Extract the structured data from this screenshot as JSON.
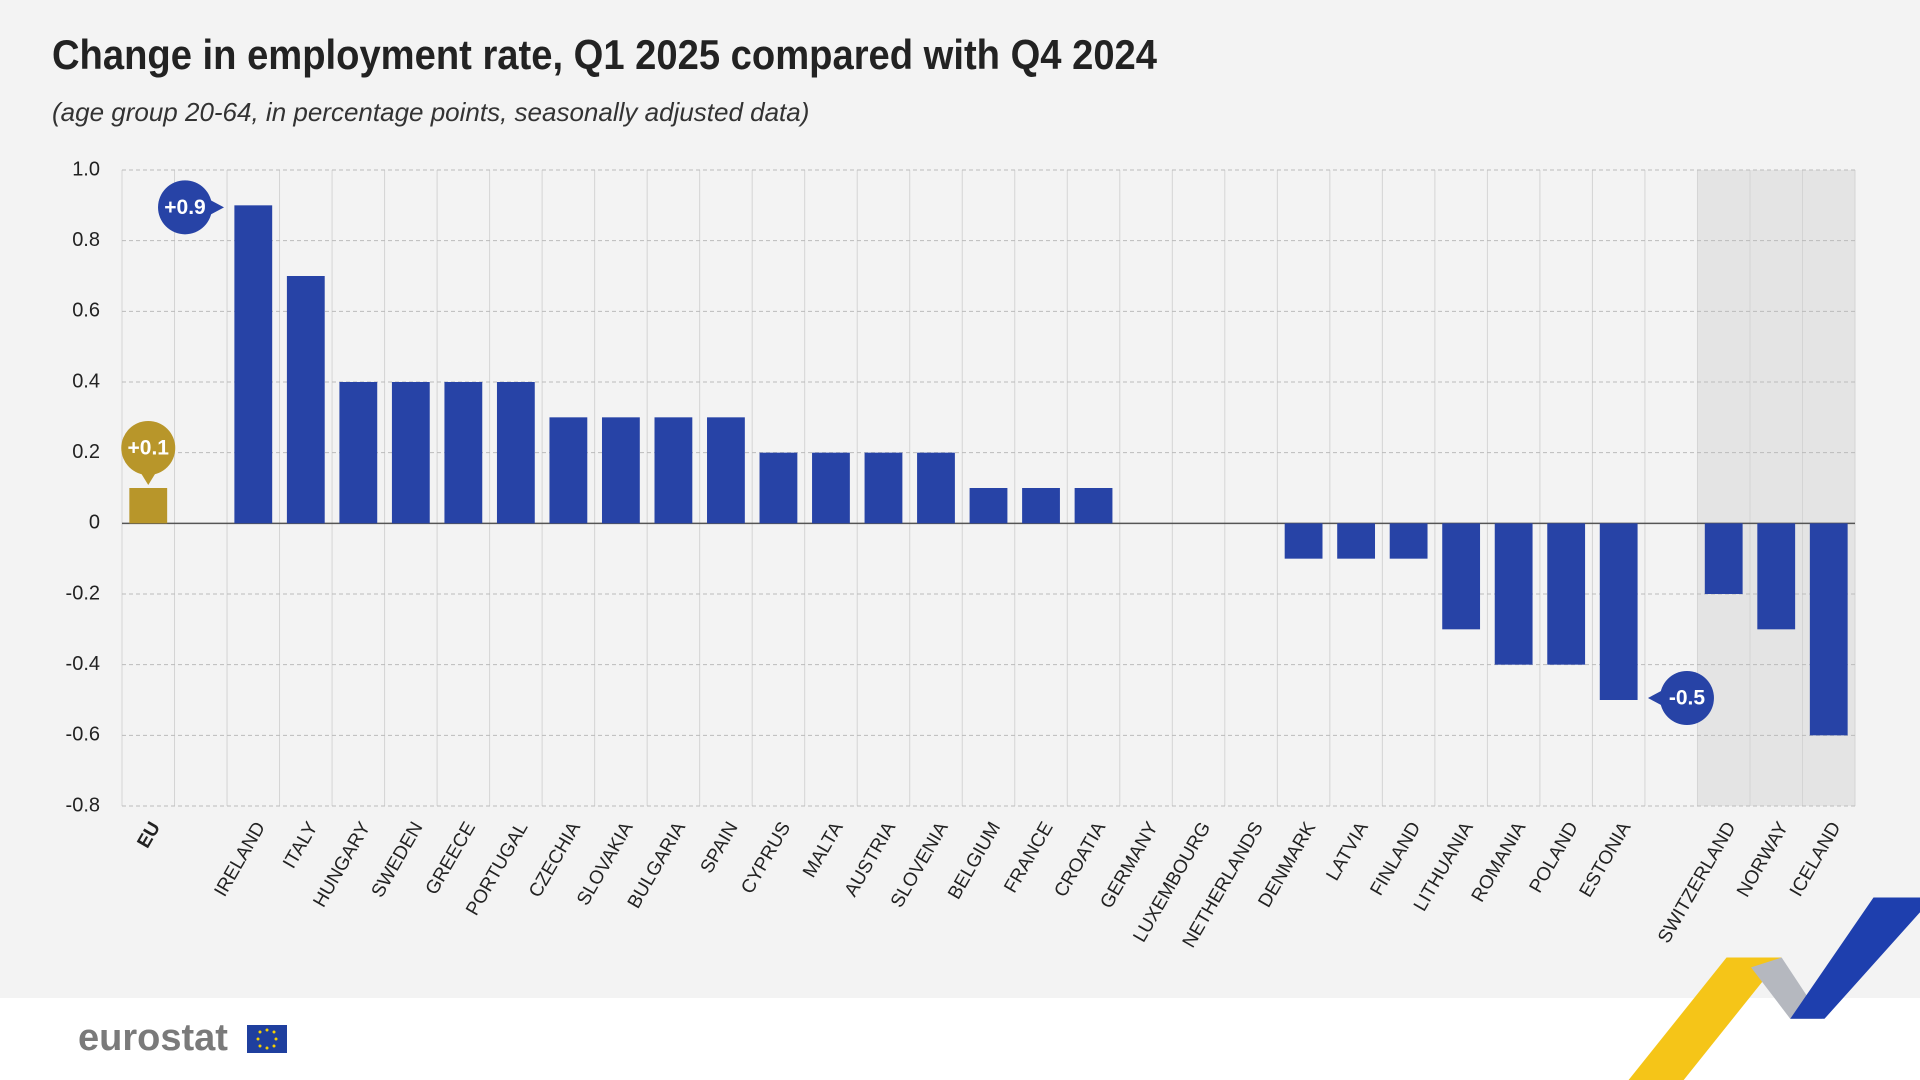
{
  "chart_data": {
    "type": "bar",
    "title": "Change in employment rate, Q1 2025 compared with Q4 2024",
    "subtitle": "(age group 20-64, in percentage points, seasonally adjusted data)",
    "categories": [
      "EU",
      null,
      "IRELAND",
      "ITALY",
      "HUNGARY",
      "SWEDEN",
      "GREECE",
      "PORTUGAL",
      "CZECHIA",
      "SLOVAKIA",
      "BULGARIA",
      "SPAIN",
      "CYPRUS",
      "MALTA",
      "AUSTRIA",
      "SLOVENIA",
      "BELGIUM",
      "FRANCE",
      "CROATIA",
      "GERMANY",
      "LUXEMBOURG",
      "NETHERLANDS",
      "DENMARK",
      "LATVIA",
      "FINLAND",
      "LITHUANIA",
      "ROMANIA",
      "POLAND",
      "ESTONIA",
      null,
      "SWITZERLAND",
      "NORWAY",
      "ICELAND"
    ],
    "values": [
      0.1,
      null,
      0.9,
      0.7,
      0.4,
      0.4,
      0.4,
      0.4,
      0.3,
      0.3,
      0.3,
      0.3,
      0.2,
      0.2,
      0.2,
      0.2,
      0.1,
      0.1,
      0.1,
      0,
      0,
      0,
      -0.1,
      -0.1,
      -0.1,
      -0.3,
      -0.4,
      -0.4,
      -0.5,
      null,
      -0.2,
      -0.3,
      -0.6
    ],
    "value_labels": [
      "+0.1",
      null,
      "+0.9",
      null,
      null,
      null,
      null,
      null,
      null,
      null,
      null,
      null,
      null,
      null,
      null,
      null,
      null,
      null,
      null,
      null,
      null,
      null,
      null,
      null,
      null,
      null,
      null,
      null,
      "-0.5",
      null,
      null,
      null,
      null
    ],
    "colors": [
      "#b8962a",
      null,
      "#2743a6",
      "#2743a6",
      "#2743a6",
      "#2743a6",
      "#2743a6",
      "#2743a6",
      "#2743a6",
      "#2743a6",
      "#2743a6",
      "#2743a6",
      "#2743a6",
      "#2743a6",
      "#2743a6",
      "#2743a6",
      "#2743a6",
      "#2743a6",
      "#2743a6",
      "#2743a6",
      "#2743a6",
      "#2743a6",
      "#2743a6",
      "#2743a6",
      "#2743a6",
      "#2743a6",
      "#2743a6",
      "#2743a6",
      "#2743a6",
      null,
      "#2743a6",
      "#2743a6",
      "#2743a6"
    ],
    "ylim": [
      -0.8,
      1
    ],
    "yticks": [
      {
        "value": 1,
        "label": "1.0"
      },
      0.8,
      0.6,
      0.4,
      0.2,
      0,
      -0.2,
      -0.4,
      -0.6,
      -0.8
    ],
    "grid": true
  },
  "footer": {
    "logo": "eurostat"
  }
}
